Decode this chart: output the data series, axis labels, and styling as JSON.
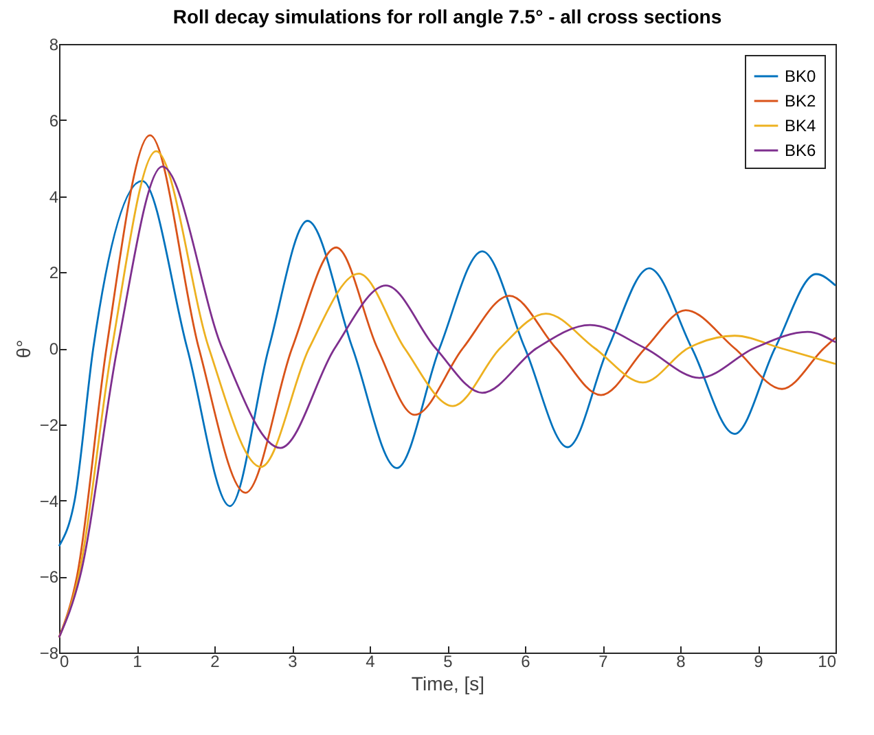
{
  "chart_data": {
    "type": "line",
    "title": "Roll decay simulations for roll angle 7.5° - all cross sections",
    "xlabel": "Time, [s]",
    "ylabel": "θ°",
    "xlim": [
      0,
      10
    ],
    "xticks": [
      0,
      1,
      2,
      3,
      4,
      5,
      6,
      7,
      8,
      9,
      10
    ],
    "ylim": [
      -8,
      8
    ],
    "yticks": [
      -8,
      -6,
      -4,
      -2,
      0,
      2,
      4,
      6,
      8
    ],
    "grid": false,
    "legend": "top right",
    "marker": "none",
    "line_style": "solid",
    "series": [
      {
        "name": "BK0",
        "color": "#0072bd",
        "x": [
          0,
          0.2,
          0.44,
          1.07,
          1.65,
          2.2,
          2.7,
          3.2,
          3.78,
          4.35,
          4.9,
          5.45,
          6.0,
          6.55,
          7.07,
          7.6,
          8.15,
          8.7,
          9.22,
          9.75,
          10
        ],
        "values": [
          -5.2,
          -4,
          0,
          4.4,
          0,
          -4.15,
          0,
          3.35,
          0,
          -3.15,
          0,
          2.55,
          0,
          -2.6,
          0,
          2.1,
          0,
          -2.25,
          0,
          1.95,
          1.65
        ]
      },
      {
        "name": "BK2",
        "color": "#d95319",
        "x": [
          0,
          0.23,
          0.61,
          1.17,
          1.8,
          2.4,
          3.0,
          3.57,
          4.1,
          4.58,
          5.2,
          5.8,
          6.4,
          6.98,
          7.55,
          8.07,
          8.7,
          9.31,
          9.85,
          10
        ],
        "values": [
          -7.6,
          -6,
          0,
          5.6,
          0,
          -3.8,
          0,
          2.65,
          0,
          -1.75,
          0,
          1.38,
          0,
          -1.23,
          0,
          1.0,
          0,
          -1.07,
          0,
          0.28
        ]
      },
      {
        "name": "BK4",
        "color": "#edb120",
        "x": [
          0,
          0.25,
          0.68,
          1.25,
          1.93,
          2.6,
          3.22,
          3.86,
          4.45,
          5.07,
          5.68,
          6.27,
          6.9,
          7.52,
          8.1,
          8.7,
          9.3,
          10
        ],
        "values": [
          -7.6,
          -6,
          0,
          5.18,
          0,
          -3.12,
          0,
          1.96,
          0,
          -1.52,
          0,
          0.91,
          0,
          -0.9,
          0,
          0.33,
          0,
          -0.41
        ]
      },
      {
        "name": "BK6",
        "color": "#7e2f8e",
        "x": [
          0,
          0.27,
          0.75,
          1.33,
          2.1,
          2.85,
          3.55,
          4.21,
          4.85,
          5.45,
          6.15,
          6.84,
          7.55,
          8.25,
          8.95,
          9.64,
          10
        ],
        "values": [
          -7.6,
          -6,
          0,
          4.78,
          0,
          -2.62,
          0,
          1.65,
          0,
          -1.17,
          0,
          0.61,
          0,
          -0.78,
          0,
          0.43,
          0.16
        ]
      }
    ]
  }
}
